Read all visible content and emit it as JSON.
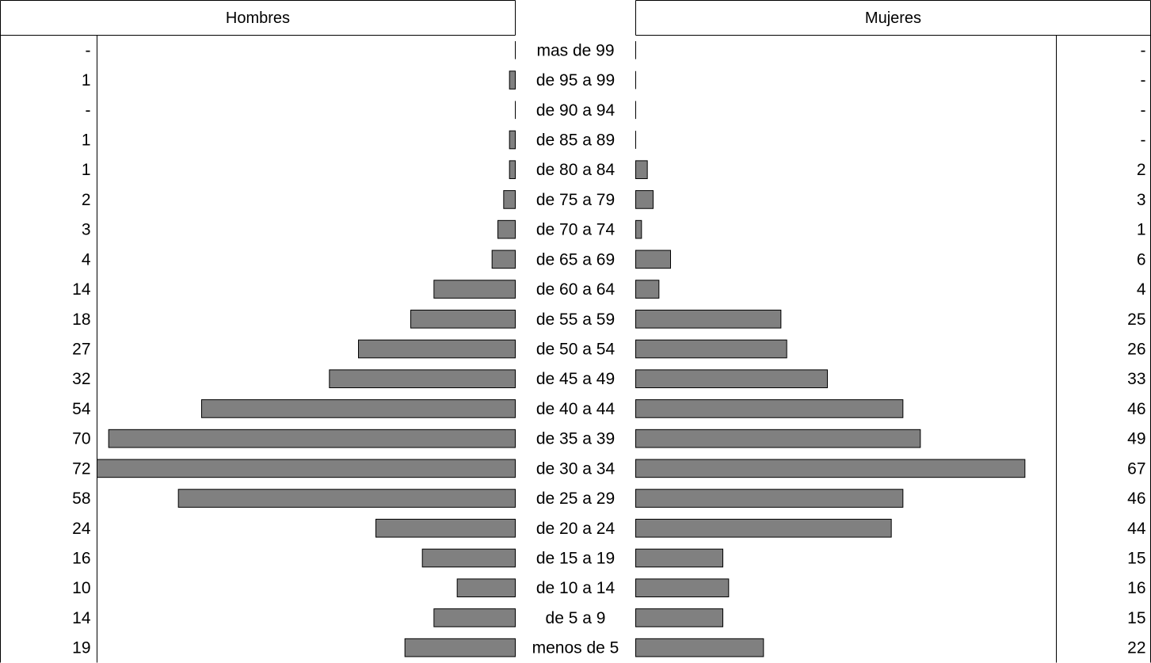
{
  "chart_data": {
    "type": "bar",
    "subtype": "population-pyramid",
    "left_label": "Hombres",
    "right_label": "Mujeres",
    "categories": [
      "mas de 99",
      "de 95 a 99",
      "de 90 a 94",
      "de 85 a 89",
      "de 80 a 84",
      "de 75 a 79",
      "de 70 a 74",
      "de 65 a 69",
      "de 60 a 64",
      "de 55 a 59",
      "de 50 a 54",
      "de 45 a 49",
      "de 40 a 44",
      "de 35 a 39",
      "de 30 a 34",
      "de 25 a 29",
      "de 20 a 24",
      "de 15 a 19",
      "de 10 a 14",
      "de 5 a 9",
      "menos de 5"
    ],
    "series": [
      {
        "name": "Hombres",
        "values": [
          0,
          1,
          0,
          1,
          1,
          2,
          3,
          4,
          14,
          18,
          27,
          32,
          54,
          70,
          72,
          58,
          24,
          16,
          10,
          14,
          19
        ],
        "value_labels": [
          "-",
          "1",
          "-",
          "1",
          "1",
          "2",
          "3",
          "4",
          "14",
          "18",
          "27",
          "32",
          "54",
          "70",
          "72",
          "58",
          "24",
          "16",
          "10",
          "14",
          "19"
        ]
      },
      {
        "name": "Mujeres",
        "values": [
          0,
          0,
          0,
          0,
          2,
          3,
          1,
          6,
          4,
          25,
          26,
          33,
          46,
          49,
          67,
          46,
          44,
          15,
          16,
          15,
          22
        ],
        "value_labels": [
          "-",
          "-",
          "-",
          "-",
          "2",
          "3",
          "1",
          "6",
          "4",
          "25",
          "26",
          "33",
          "46",
          "49",
          "67",
          "46",
          "44",
          "15",
          "16",
          "15",
          "22"
        ]
      }
    ],
    "xlim": [
      0,
      72
    ],
    "bar_color": "#808080",
    "grid": false
  }
}
